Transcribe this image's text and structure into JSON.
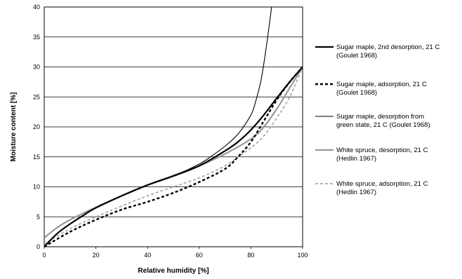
{
  "chart_data": {
    "type": "line",
    "xlabel": "Relative humidity [%]",
    "ylabel": "Moisture content [%]",
    "xlim": [
      0,
      100
    ],
    "ylim": [
      0,
      40
    ],
    "x_ticks": [
      0,
      20,
      40,
      60,
      80,
      100
    ],
    "y_ticks": [
      0,
      5,
      10,
      15,
      20,
      25,
      30,
      35,
      40
    ],
    "grid": "horizontal",
    "legend_position": "right",
    "series": [
      {
        "name": "Sugar maple, 2nd desorption, 21 C (Goulet 1968)",
        "legend_lines": [
          "Sugar maple, 2nd desorption, 21 C",
          "(Goulet 1968)"
        ],
        "style": "solid-thick",
        "color": "#000000",
        "x": [
          0,
          5,
          10,
          15,
          20,
          30,
          40,
          50,
          60,
          70,
          75,
          80,
          85,
          90,
          95,
          100
        ],
        "y": [
          0,
          2.2,
          3.8,
          5.2,
          6.5,
          8.5,
          10.3,
          11.8,
          13.5,
          16,
          17.5,
          19.5,
          22,
          24.8,
          27.5,
          30
        ]
      },
      {
        "name": "Sugar maple, adsorption, 21 C (Goulet 1968)",
        "legend_lines": [
          "Sugar maple, adsorption, 21 C",
          "(Goulet 1968)"
        ],
        "style": "dashed-thick",
        "color": "#000000",
        "x": [
          0,
          10,
          20,
          30,
          40,
          50,
          60,
          70,
          75,
          80,
          85,
          90,
          95,
          100
        ],
        "y": [
          0,
          2.5,
          4.5,
          6.2,
          7.5,
          9,
          10.8,
          13,
          15,
          17.5,
          21,
          24.5,
          27.5,
          30
        ]
      },
      {
        "name": "Sugar maple, desorption from green state, 21 C (Goulet 1968)",
        "legend_lines": [
          "Sugar maple, desorption from",
          "green state, 21 C (Goulet 1968)"
        ],
        "style": "solid-thin",
        "color": "#000000",
        "x": [
          0,
          5,
          10,
          15,
          20,
          30,
          40,
          50,
          60,
          65,
          70,
          75,
          80,
          82,
          84,
          86,
          88
        ],
        "y": [
          0,
          2.2,
          3.8,
          5.2,
          6.5,
          8.5,
          10.3,
          11.8,
          13.8,
          15.2,
          16.8,
          18.8,
          22,
          24.5,
          28,
          33.5,
          40
        ]
      },
      {
        "name": "White spruce, desorption, 21 C (Hedlin 1967)",
        "legend_lines": [
          "White spruce, desorption, 21 C",
          "(Hedlin 1967)"
        ],
        "style": "solid-gray",
        "color": "#999999",
        "x": [
          0,
          5,
          10,
          20,
          30,
          40,
          50,
          60,
          70,
          80,
          85,
          90,
          95,
          100
        ],
        "y": [
          1.5,
          3.2,
          4.5,
          6.6,
          8.5,
          10.3,
          11.9,
          13.5,
          15.5,
          18,
          20,
          23,
          26.5,
          30
        ]
      },
      {
        "name": "White spruce, adsorption, 21 C (Hedlin 1967)",
        "legend_lines": [
          "White spruce, adsorption, 21 C",
          "(Hedlin 1967)"
        ],
        "style": "dashed-gray",
        "color": "#aaaaaa",
        "x": [
          0,
          10,
          20,
          30,
          40,
          50,
          60,
          70,
          75,
          80,
          85,
          90,
          95,
          100
        ],
        "y": [
          0.5,
          3,
          5,
          6.8,
          8.5,
          10,
          11.5,
          13.5,
          15,
          16.5,
          18.5,
          21.5,
          25,
          30
        ]
      }
    ]
  }
}
